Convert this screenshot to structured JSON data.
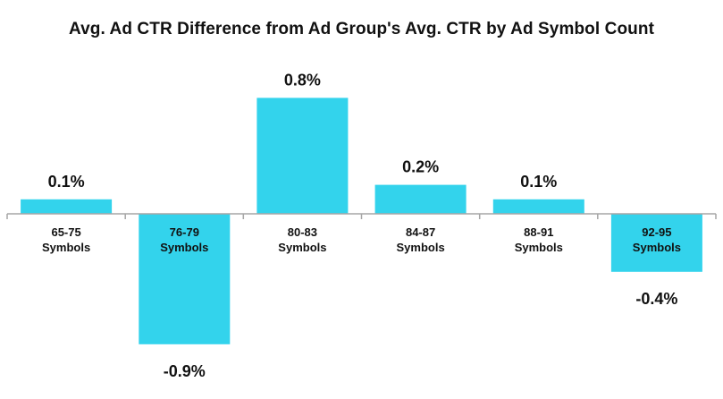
{
  "chart_data": {
    "type": "bar",
    "title": "Avg. Ad CTR Difference from Ad Group's Avg. CTR by Ad Symbol Count",
    "categories": [
      [
        "65-75",
        "Symbols"
      ],
      [
        "76-79",
        "Symbols"
      ],
      [
        "80-83",
        "Symbols"
      ],
      [
        "84-87",
        "Symbols"
      ],
      [
        "88-91",
        "Symbols"
      ],
      [
        "92-95",
        "Symbols"
      ]
    ],
    "values": [
      0.1,
      -0.9,
      0.8,
      0.2,
      0.1,
      -0.4
    ],
    "data_labels": [
      "0.1%",
      "-0.9%",
      "0.8%",
      "0.2%",
      "0.1%",
      "-0.4%"
    ],
    "xlabel": "",
    "ylabel": "",
    "grid": false,
    "legend": "none",
    "colors": {
      "bar": "#33d3ec",
      "axis": "#a6a6a6",
      "text": "#111111"
    }
  }
}
